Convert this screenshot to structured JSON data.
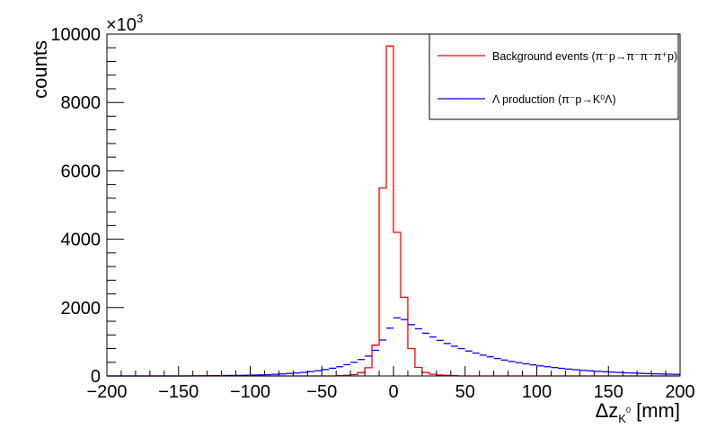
{
  "chart_data": {
    "type": "histogram",
    "x_axis": {
      "label_main": "Δz",
      "label_sub": "K",
      "label_sup": "0",
      "label_unit": "[mm]",
      "range": [
        -200,
        200
      ],
      "tick_labels": [
        "−200",
        "−150",
        "−100",
        "−50",
        "0",
        "50",
        "100",
        "150",
        "200"
      ],
      "tick_values": [
        -200,
        -150,
        -100,
        -50,
        0,
        50,
        100,
        150,
        200
      ]
    },
    "y_axis": {
      "label": "counts",
      "multiplier": "×10",
      "multiplier_exp": "3",
      "range": [
        0,
        10000
      ],
      "tick_labels": [
        "0",
        "2000",
        "4000",
        "6000",
        "8000",
        "10000"
      ],
      "tick_values": [
        0,
        2000,
        4000,
        6000,
        8000,
        10000
      ]
    },
    "bin_width": 5,
    "legend": {
      "placement": "top-right",
      "entries": [
        {
          "text": "Background events (π⁻p→π⁻π⁻π⁺p)",
          "color": "#ff0000"
        },
        {
          "text": "Λ production (π⁻p→K⁰Λ)",
          "color": "#0000ff"
        }
      ]
    },
    "series": [
      {
        "name": "Background events (π⁻p→π⁻π⁻π⁺p)",
        "color": "#ff0000",
        "style": "step",
        "x_bin_centers": [
          -37.5,
          -32.5,
          -27.5,
          -22.5,
          -17.5,
          -12.5,
          -7.5,
          -2.5,
          2.5,
          7.5,
          12.5,
          17.5,
          22.5,
          27.5,
          32.5,
          37.5,
          42.5
        ],
        "values": [
          10,
          20,
          40,
          100,
          240,
          900,
          5500,
          9650,
          4200,
          2300,
          800,
          250,
          100,
          50,
          30,
          20,
          10
        ]
      },
      {
        "name": "Λ production (π⁻p→K⁰Λ)",
        "color": "#0000ff",
        "style": "markers",
        "x_bin_centers": [
          -197.5,
          -192.5,
          -187.5,
          -182.5,
          -177.5,
          -172.5,
          -167.5,
          -162.5,
          -157.5,
          -152.5,
          -147.5,
          -142.5,
          -137.5,
          -132.5,
          -127.5,
          -122.5,
          -117.5,
          -112.5,
          -107.5,
          -102.5,
          -97.5,
          -92.5,
          -87.5,
          -82.5,
          -77.5,
          -72.5,
          -67.5,
          -62.5,
          -57.5,
          -52.5,
          -47.5,
          -42.5,
          -37.5,
          -32.5,
          -27.5,
          -22.5,
          -17.5,
          -12.5,
          -7.5,
          -2.5,
          2.5,
          7.5,
          12.5,
          17.5,
          22.5,
          27.5,
          32.5,
          37.5,
          42.5,
          47.5,
          52.5,
          57.5,
          62.5,
          67.5,
          72.5,
          77.5,
          82.5,
          87.5,
          92.5,
          97.5,
          102.5,
          107.5,
          112.5,
          117.5,
          122.5,
          127.5,
          132.5,
          137.5,
          142.5,
          147.5,
          152.5,
          157.5,
          162.5,
          167.5,
          172.5,
          177.5,
          182.5,
          187.5,
          192.5,
          197.5
        ],
        "values": [
          0,
          0,
          0,
          0,
          0,
          0,
          0,
          0,
          0,
          0,
          0,
          2,
          4,
          5,
          7,
          9,
          12,
          14,
          17,
          21,
          26,
          32,
          39,
          48,
          59,
          72,
          87,
          106,
          128,
          155,
          188,
          226,
          270,
          330,
          400,
          480,
          580,
          750,
          1050,
          1400,
          1700,
          1650,
          1500,
          1380,
          1250,
          1140,
          1040,
          950,
          870,
          800,
          730,
          670,
          610,
          560,
          510,
          465,
          425,
          390,
          355,
          325,
          295,
          270,
          245,
          222,
          200,
          182,
          165,
          150,
          136,
          123,
          112,
          102,
          92,
          84,
          76,
          69,
          63,
          57,
          52,
          47
        ]
      }
    ],
    "grid": false
  }
}
